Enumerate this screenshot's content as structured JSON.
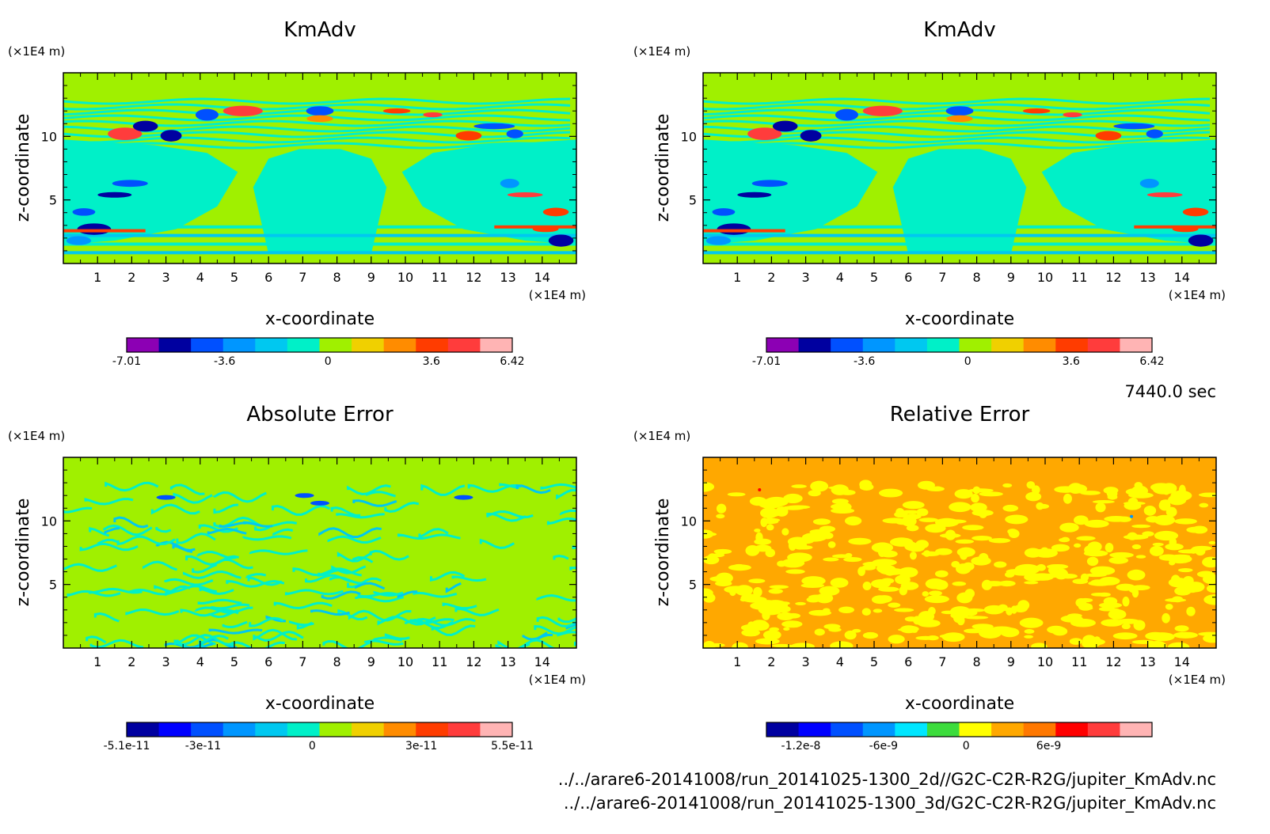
{
  "time_label": "7440.0 sec",
  "file_paths": [
    "../../arare6-20141008/run_20141025-1300_2d//G2C-C2R-R2G/jupiter_KmAdv.nc",
    "../../arare6-20141008/run_20141025-1300_3d/G2C-C2R-R2G/jupiter_KmAdv.nc"
  ],
  "chart_data": [
    {
      "type": "heatmap",
      "title": "KmAdv",
      "xlabel": "x-coordinate",
      "ylabel": "z-coordinate",
      "x_unit": "(×1E4 m)",
      "y_unit": "(×1E4 m)",
      "xlim": [
        0,
        15
      ],
      "ylim": [
        0,
        15
      ],
      "xticks": [
        "1",
        "2",
        "3",
        "4",
        "5",
        "6",
        "7",
        "8",
        "9",
        "10",
        "11",
        "12",
        "13",
        "14"
      ],
      "yticks": [
        "5",
        "10"
      ],
      "background_color": "#a0f000",
      "colorbar": {
        "colors": [
          "#8c00b4",
          "#0000a0",
          "#0050ff",
          "#0096ff",
          "#00c8f0",
          "#00f0c8",
          "#a0f000",
          "#f0d000",
          "#ff8c00",
          "#ff3c00",
          "#ff3c3c",
          "#ffb4b4"
        ],
        "tick_labels": [
          "-7.01",
          "-3.6",
          "0",
          "3.6",
          "6.42"
        ],
        "tick_values": [
          -7.01,
          -3.6,
          0,
          3.6,
          6.42
        ],
        "range": [
          -7.01,
          6.42
        ]
      }
    },
    {
      "type": "heatmap",
      "title": "KmAdv",
      "xlabel": "x-coordinate",
      "ylabel": "z-coordinate",
      "x_unit": "(×1E4 m)",
      "y_unit": "(×1E4 m)",
      "xlim": [
        0,
        15
      ],
      "ylim": [
        0,
        15
      ],
      "xticks": [
        "1",
        "2",
        "3",
        "4",
        "5",
        "6",
        "7",
        "8",
        "9",
        "10",
        "11",
        "12",
        "13",
        "14"
      ],
      "yticks": [
        "5",
        "10"
      ],
      "background_color": "#a0f000",
      "colorbar": {
        "colors": [
          "#8c00b4",
          "#0000a0",
          "#0050ff",
          "#0096ff",
          "#00c8f0",
          "#00f0c8",
          "#a0f000",
          "#f0d000",
          "#ff8c00",
          "#ff3c00",
          "#ff3c3c",
          "#ffb4b4"
        ],
        "tick_labels": [
          "-7.01",
          "-3.6",
          "0",
          "3.6",
          "6.42"
        ],
        "tick_values": [
          -7.01,
          -3.6,
          0,
          3.6,
          6.42
        ],
        "range": [
          -7.01,
          6.42
        ]
      }
    },
    {
      "type": "heatmap",
      "title": "Absolute Error",
      "xlabel": "x-coordinate",
      "ylabel": "z-coordinate",
      "x_unit": "(×1E4 m)",
      "y_unit": "(×1E4 m)",
      "xlim": [
        0,
        15
      ],
      "ylim": [
        0,
        15
      ],
      "xticks": [
        "1",
        "2",
        "3",
        "4",
        "5",
        "6",
        "7",
        "8",
        "9",
        "10",
        "11",
        "12",
        "13",
        "14"
      ],
      "yticks": [
        "5",
        "10"
      ],
      "background_color": "#a0f000",
      "colorbar": {
        "colors": [
          "#0000a0",
          "#0000ff",
          "#0050ff",
          "#0096ff",
          "#00c8f0",
          "#00f0c8",
          "#a0f000",
          "#f0d000",
          "#ff8c00",
          "#ff3c00",
          "#ff3c3c",
          "#ffb4b4"
        ],
        "tick_labels": [
          "-5.1e-11",
          "-3e-11",
          "0",
          "3e-11",
          "5.5e-11"
        ],
        "tick_values": [
          -5.1e-11,
          -3e-11,
          0,
          3e-11,
          5.5e-11
        ],
        "range": [
          -5.1e-11,
          5.5e-11
        ]
      }
    },
    {
      "type": "heatmap",
      "title": "Relative Error",
      "xlabel": "x-coordinate",
      "ylabel": "z-coordinate",
      "x_unit": "(×1E4 m)",
      "y_unit": "(×1E4 m)",
      "xlim": [
        0,
        15
      ],
      "ylim": [
        0,
        15
      ],
      "xticks": [
        "1",
        "2",
        "3",
        "4",
        "5",
        "6",
        "7",
        "8",
        "9",
        "10",
        "11",
        "12",
        "13",
        "14"
      ],
      "yticks": [
        "5",
        "10"
      ],
      "background_color": "#ffa800",
      "colorbar": {
        "colors": [
          "#0000a0",
          "#0000ff",
          "#0050ff",
          "#0096ff",
          "#00e6ff",
          "#3cdc3c",
          "#ffff00",
          "#ffa800",
          "#ff7800",
          "#ff0000",
          "#ff3c3c",
          "#ffb4b4"
        ],
        "tick_labels": [
          "-1.2e-8",
          "-6e-9",
          "0",
          "6e-9"
        ],
        "tick_values": [
          -1.2e-08,
          -6e-09,
          0,
          6e-09
        ],
        "range": [
          -1.45e-08,
          1.35e-08
        ]
      }
    }
  ]
}
